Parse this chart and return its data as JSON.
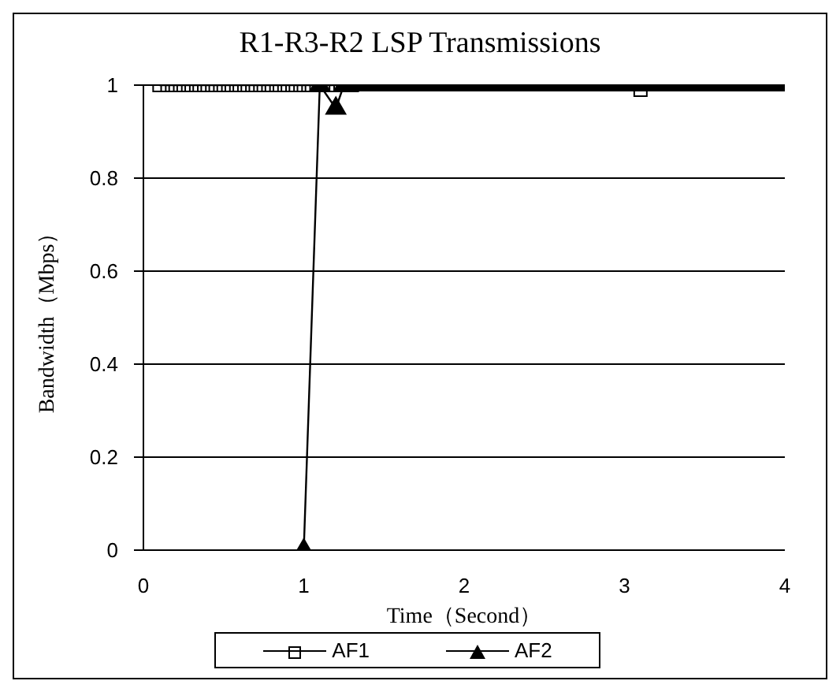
{
  "chart_data": {
    "type": "line",
    "title": "R1-R3-R2 LSP Transmissions",
    "xlabel": "Time（Second）",
    "ylabel": "Bandwidth（Mbps）",
    "xlim": [
      0,
      4
    ],
    "xticks": [
      0,
      1,
      2,
      3,
      4
    ],
    "ylim": [
      0,
      1
    ],
    "yticks": [
      0,
      0.2,
      0.4,
      0.6,
      0.8,
      1
    ],
    "grid": "y",
    "legend": "bottom",
    "line_style": "solid",
    "series": [
      {
        "name": "AF1",
        "color": "#000000",
        "marker": "square",
        "x": [
          0.1,
          0.15,
          0.2,
          0.25,
          0.3,
          0.35,
          0.4,
          0.45,
          0.5,
          0.55,
          0.6,
          0.65,
          0.7,
          0.75,
          0.8,
          0.85,
          0.9,
          0.95,
          1,
          1.05,
          1.1,
          1.15,
          1.2,
          1.25,
          1.3,
          1.35,
          1.4,
          1.45,
          1.5,
          1.55,
          1.6,
          1.65,
          1.7,
          1.75,
          1.8,
          1.85,
          1.9,
          1.95,
          2,
          2.05,
          2.1,
          2.15,
          2.2,
          2.25,
          2.3,
          2.35,
          2.4,
          2.45,
          2.5,
          2.55,
          2.6,
          2.65,
          2.7,
          2.75,
          2.8,
          2.85,
          2.9,
          2.95,
          3,
          3.05,
          3.1
        ],
        "values": [
          1,
          1,
          1,
          1,
          1,
          1,
          1,
          1,
          1,
          1,
          1,
          1,
          1,
          1,
          1,
          1,
          1,
          1,
          1,
          1,
          1,
          1,
          1,
          1,
          1,
          null,
          null,
          null,
          null,
          null,
          null,
          null,
          null,
          null,
          null,
          null,
          null,
          null,
          null,
          null,
          null,
          null,
          null,
          null,
          null,
          null,
          null,
          null,
          null,
          null,
          null,
          null,
          null,
          null,
          null,
          null,
          null,
          null,
          null,
          null,
          0.99
        ]
      },
      {
        "name": "AF2",
        "color": "#000000",
        "marker": "triangle",
        "x": [
          1,
          1.1,
          1.2,
          1.25,
          1.3,
          1.35,
          1.4,
          1.45,
          1.5,
          1.55,
          1.6,
          1.65,
          1.7,
          1.75,
          1.8,
          1.85,
          1.9,
          1.95,
          2,
          2.05,
          2.1,
          2.15,
          2.2,
          2.25,
          2.3,
          2.35,
          2.4,
          2.45,
          2.5,
          2.55,
          2.6,
          2.65,
          2.7,
          2.75,
          2.8,
          2.85,
          2.9,
          2.95,
          3,
          3.05,
          3.1,
          3.15,
          3.2,
          3.25,
          3.3,
          3.35,
          3.4,
          3.45,
          3.5,
          3.55,
          3.6,
          3.65,
          3.7,
          3.75,
          3.8,
          3.85,
          3.9,
          3.95,
          4
        ],
        "values": [
          0,
          1,
          0.95,
          1,
          1,
          1,
          1,
          1,
          1,
          1,
          1,
          1,
          1,
          1,
          1,
          1,
          1,
          1,
          1,
          1,
          1,
          1,
          1,
          1,
          1,
          1,
          1,
          1,
          1,
          1,
          1,
          1,
          1,
          1,
          1,
          1,
          1,
          1,
          1,
          1,
          1,
          1,
          1,
          1,
          1,
          1,
          1,
          1,
          1,
          1,
          1,
          1,
          1,
          1,
          1,
          1,
          1,
          1,
          1
        ]
      }
    ]
  }
}
